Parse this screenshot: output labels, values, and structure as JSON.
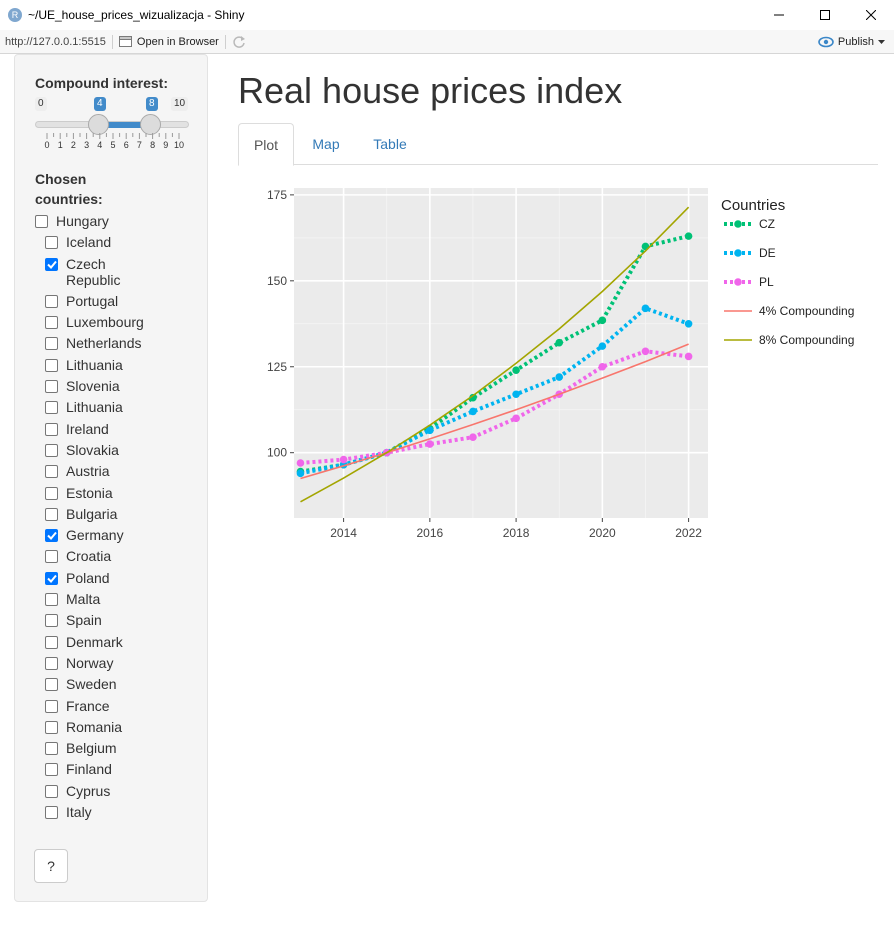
{
  "window": {
    "title": "~/UE_house_prices_wizualizacja - Shiny",
    "app_icon_letter": "R"
  },
  "toolbar": {
    "url": "http://127.0.0.1:5515",
    "open_in_browser": "Open in Browser",
    "publish": "Publish"
  },
  "sidebar": {
    "slider": {
      "label": "Compound interest:",
      "min": 0,
      "max": 10,
      "value_from": 4,
      "value_to": 8,
      "ticks": [
        "0",
        "1",
        "2",
        "3",
        "4",
        "5",
        "6",
        "7",
        "8",
        "9",
        "10"
      ]
    },
    "countries_label": "Chosen countries:",
    "countries": [
      {
        "name": "Hungary",
        "checked": false,
        "indent": false
      },
      {
        "name": "Iceland",
        "checked": false,
        "indent": true
      },
      {
        "name": "Czech Republic",
        "checked": true,
        "indent": true
      },
      {
        "name": "Portugal",
        "checked": false,
        "indent": true
      },
      {
        "name": "Luxembourg",
        "checked": false,
        "indent": true
      },
      {
        "name": "Netherlands",
        "checked": false,
        "indent": true
      },
      {
        "name": "Lithuania",
        "checked": false,
        "indent": true
      },
      {
        "name": "Slovenia",
        "checked": false,
        "indent": true
      },
      {
        "name": "Lithuania",
        "checked": false,
        "indent": true
      },
      {
        "name": "Ireland",
        "checked": false,
        "indent": true
      },
      {
        "name": "Slovakia",
        "checked": false,
        "indent": true
      },
      {
        "name": "Austria",
        "checked": false,
        "indent": true
      },
      {
        "name": "Estonia",
        "checked": false,
        "indent": true
      },
      {
        "name": "Bulgaria",
        "checked": false,
        "indent": true
      },
      {
        "name": "Germany",
        "checked": true,
        "indent": true
      },
      {
        "name": "Croatia",
        "checked": false,
        "indent": true
      },
      {
        "name": "Poland",
        "checked": true,
        "indent": true
      },
      {
        "name": "Malta",
        "checked": false,
        "indent": true
      },
      {
        "name": "Spain",
        "checked": false,
        "indent": true
      },
      {
        "name": "Denmark",
        "checked": false,
        "indent": true
      },
      {
        "name": "Norway",
        "checked": false,
        "indent": true
      },
      {
        "name": "Sweden",
        "checked": false,
        "indent": true
      },
      {
        "name": "France",
        "checked": false,
        "indent": true
      },
      {
        "name": "Romania",
        "checked": false,
        "indent": true
      },
      {
        "name": "Belgium",
        "checked": false,
        "indent": true
      },
      {
        "name": "Finland",
        "checked": false,
        "indent": true
      },
      {
        "name": "Cyprus",
        "checked": false,
        "indent": true
      },
      {
        "name": "Italy",
        "checked": false,
        "indent": true
      }
    ],
    "help_button": "?"
  },
  "main": {
    "title": "Real house prices index",
    "tabs": [
      {
        "label": "Plot",
        "active": true
      },
      {
        "label": "Map",
        "active": false
      },
      {
        "label": "Table",
        "active": false
      }
    ]
  },
  "colors": {
    "slider_accent": "#428bca",
    "checkbox_checked": "#0075ff",
    "tab_link": "#337ab7",
    "cz": "#00c176",
    "de": "#00b4f0",
    "pl": "#f066ea",
    "compound_4": "#f8766d",
    "compound_8": "#a3a500",
    "plot_panel": "#ebebeb"
  },
  "chart_data": {
    "type": "line",
    "title": "",
    "xlabel": "",
    "ylabel": "",
    "xlim": [
      2012.85,
      2022.45
    ],
    "ylim": [
      81,
      177
    ],
    "x_ticks": [
      2014,
      2016,
      2018,
      2020,
      2022
    ],
    "y_ticks": [
      100,
      125,
      150,
      175
    ],
    "grid": true,
    "legend_title": "Countries",
    "legend_position": "right",
    "series": [
      {
        "name": "CZ",
        "style": "dotted-points",
        "x": [
          2013,
          2014,
          2015,
          2016,
          2017,
          2018,
          2019,
          2020,
          2021,
          2022
        ],
        "y": [
          94.5,
          96.5,
          100,
          107,
          116,
          124,
          132,
          138.5,
          160,
          163
        ]
      },
      {
        "name": "DE",
        "style": "dotted-points",
        "x": [
          2013,
          2014,
          2015,
          2016,
          2017,
          2018,
          2019,
          2020,
          2021,
          2022
        ],
        "y": [
          94,
          96.5,
          100,
          106.5,
          112,
          117,
          122,
          131,
          142,
          137.5
        ]
      },
      {
        "name": "PL",
        "style": "dotted-points",
        "x": [
          2013,
          2014,
          2015,
          2016,
          2017,
          2018,
          2019,
          2020,
          2021,
          2022
        ],
        "y": [
          97,
          98,
          100,
          102.5,
          104.5,
          110,
          117,
          125,
          129.5,
          128
        ]
      },
      {
        "name": "4% Compounding",
        "style": "line",
        "x": [
          2013,
          2014,
          2015,
          2016,
          2017,
          2018,
          2019,
          2020,
          2021,
          2022
        ],
        "y": [
          92.5,
          96.2,
          100,
          104,
          108.2,
          112.5,
          117,
          121.7,
          126.5,
          131.6
        ]
      },
      {
        "name": "8% Compounding",
        "style": "line",
        "x": [
          2013,
          2014,
          2015,
          2016,
          2017,
          2018,
          2019,
          2020,
          2021,
          2022
        ],
        "y": [
          85.7,
          92.6,
          100,
          108,
          116.6,
          126,
          136,
          146.9,
          158.7,
          171.4
        ]
      }
    ]
  }
}
